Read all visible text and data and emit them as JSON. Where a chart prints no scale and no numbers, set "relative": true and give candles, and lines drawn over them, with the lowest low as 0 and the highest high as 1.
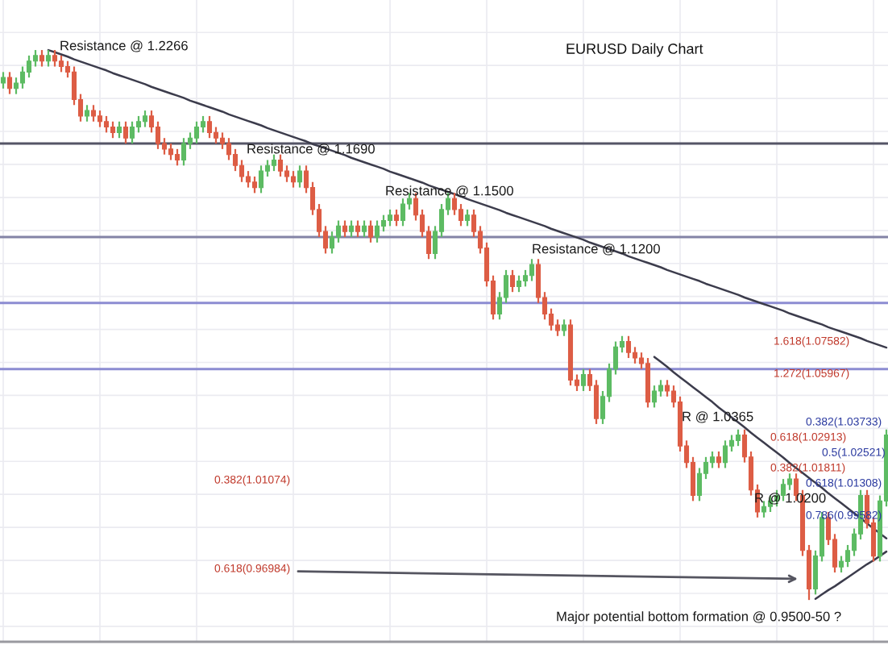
{
  "chart_data": {
    "type": "candlestick",
    "title": "EURUSD Daily Chart",
    "relative": true,
    "tick_labels": false,
    "grid": true,
    "categories": [
      null,
      null,
      null,
      null,
      null,
      null,
      null,
      null,
      null,
      null,
      null,
      null,
      null,
      null,
      null,
      null,
      null,
      null,
      null,
      null,
      null,
      null,
      null,
      null,
      null,
      null,
      null,
      null,
      null,
      null,
      null,
      null,
      null,
      null,
      null,
      null,
      null,
      null,
      null,
      null,
      null,
      null,
      null,
      null,
      null,
      null,
      null,
      null,
      null,
      null,
      null,
      null,
      null,
      null,
      null,
      null,
      null,
      null,
      null,
      null,
      null,
      null,
      null,
      null,
      null,
      null,
      null,
      null,
      null,
      null,
      null,
      null,
      null,
      null,
      null,
      null,
      null,
      null,
      null,
      null,
      null,
      null,
      null,
      null,
      null,
      null,
      null,
      null,
      null,
      null,
      null,
      null,
      null,
      null,
      null,
      null,
      null,
      null,
      null,
      null,
      null,
      null,
      null,
      null,
      null,
      null,
      null,
      null,
      null,
      null,
      null,
      null,
      null,
      null,
      null,
      null,
      null,
      null,
      null,
      null,
      null,
      null,
      null,
      null,
      null,
      null,
      null,
      null,
      null,
      null,
      null,
      null,
      null,
      null,
      null,
      null,
      null,
      null
    ],
    "ohlc": [
      [
        0.94,
        0.96,
        0.93,
        0.95
      ],
      [
        0.95,
        0.96,
        0.92,
        0.93
      ],
      [
        0.93,
        0.95,
        0.92,
        0.94
      ],
      [
        0.94,
        0.97,
        0.93,
        0.96
      ],
      [
        0.96,
        0.99,
        0.95,
        0.98
      ],
      [
        0.98,
        1.0,
        0.97,
        0.99
      ],
      [
        0.99,
        1.0,
        0.97,
        0.98
      ],
      [
        0.98,
        1.0,
        0.97,
        0.99
      ],
      [
        0.99,
        1.0,
        0.97,
        0.98
      ],
      [
        0.98,
        0.99,
        0.96,
        0.97
      ],
      [
        0.97,
        0.98,
        0.95,
        0.96
      ],
      [
        0.96,
        0.97,
        0.9,
        0.91
      ],
      [
        0.91,
        0.92,
        0.87,
        0.88
      ],
      [
        0.88,
        0.9,
        0.87,
        0.89
      ],
      [
        0.89,
        0.9,
        0.87,
        0.88
      ],
      [
        0.88,
        0.89,
        0.86,
        0.87
      ],
      [
        0.87,
        0.88,
        0.85,
        0.86
      ],
      [
        0.86,
        0.87,
        0.84,
        0.85
      ],
      [
        0.85,
        0.87,
        0.84,
        0.86
      ],
      [
        0.86,
        0.87,
        0.83,
        0.84
      ],
      [
        0.84,
        0.87,
        0.83,
        0.86
      ],
      [
        0.86,
        0.88,
        0.85,
        0.87
      ],
      [
        0.87,
        0.89,
        0.86,
        0.88
      ],
      [
        0.88,
        0.89,
        0.85,
        0.86
      ],
      [
        0.86,
        0.87,
        0.82,
        0.83
      ],
      [
        0.83,
        0.84,
        0.81,
        0.82
      ],
      [
        0.82,
        0.83,
        0.8,
        0.81
      ],
      [
        0.81,
        0.82,
        0.79,
        0.8
      ],
      [
        0.8,
        0.84,
        0.79,
        0.83
      ],
      [
        0.83,
        0.85,
        0.82,
        0.84
      ],
      [
        0.84,
        0.87,
        0.83,
        0.86
      ],
      [
        0.86,
        0.88,
        0.85,
        0.87
      ],
      [
        0.87,
        0.88,
        0.84,
        0.85
      ],
      [
        0.85,
        0.86,
        0.83,
        0.84
      ],
      [
        0.84,
        0.85,
        0.82,
        0.83
      ],
      [
        0.83,
        0.84,
        0.8,
        0.81
      ],
      [
        0.81,
        0.82,
        0.78,
        0.79
      ],
      [
        0.79,
        0.8,
        0.76,
        0.77
      ],
      [
        0.77,
        0.78,
        0.75,
        0.76
      ],
      [
        0.76,
        0.77,
        0.74,
        0.75
      ],
      [
        0.75,
        0.79,
        0.74,
        0.78
      ],
      [
        0.78,
        0.8,
        0.77,
        0.79
      ],
      [
        0.79,
        0.81,
        0.78,
        0.8
      ],
      [
        0.8,
        0.81,
        0.77,
        0.78
      ],
      [
        0.78,
        0.79,
        0.76,
        0.77
      ],
      [
        0.77,
        0.78,
        0.75,
        0.76
      ],
      [
        0.76,
        0.79,
        0.75,
        0.78
      ],
      [
        0.78,
        0.79,
        0.74,
        0.75
      ],
      [
        0.75,
        0.76,
        0.7,
        0.71
      ],
      [
        0.71,
        0.72,
        0.66,
        0.67
      ],
      [
        0.67,
        0.68,
        0.63,
        0.64
      ],
      [
        0.64,
        0.67,
        0.63,
        0.66
      ],
      [
        0.66,
        0.69,
        0.65,
        0.68
      ],
      [
        0.68,
        0.69,
        0.66,
        0.67
      ],
      [
        0.67,
        0.69,
        0.66,
        0.68
      ],
      [
        0.68,
        0.69,
        0.66,
        0.67
      ],
      [
        0.67,
        0.69,
        0.66,
        0.68
      ],
      [
        0.68,
        0.69,
        0.65,
        0.66
      ],
      [
        0.66,
        0.69,
        0.65,
        0.68
      ],
      [
        0.68,
        0.7,
        0.67,
        0.69
      ],
      [
        0.69,
        0.71,
        0.68,
        0.7
      ],
      [
        0.7,
        0.71,
        0.68,
        0.69
      ],
      [
        0.69,
        0.73,
        0.68,
        0.72
      ],
      [
        0.72,
        0.74,
        0.71,
        0.73
      ],
      [
        0.73,
        0.74,
        0.69,
        0.7
      ],
      [
        0.7,
        0.71,
        0.66,
        0.67
      ],
      [
        0.67,
        0.68,
        0.62,
        0.63
      ],
      [
        0.63,
        0.68,
        0.62,
        0.67
      ],
      [
        0.67,
        0.72,
        0.66,
        0.71
      ],
      [
        0.71,
        0.74,
        0.7,
        0.73
      ],
      [
        0.73,
        0.74,
        0.7,
        0.71
      ],
      [
        0.71,
        0.72,
        0.68,
        0.69
      ],
      [
        0.69,
        0.71,
        0.68,
        0.7
      ],
      [
        0.7,
        0.71,
        0.66,
        0.67
      ],
      [
        0.67,
        0.68,
        0.63,
        0.64
      ],
      [
        0.64,
        0.65,
        0.57,
        0.58
      ],
      [
        0.58,
        0.59,
        0.51,
        0.52
      ],
      [
        0.52,
        0.56,
        0.51,
        0.55
      ],
      [
        0.55,
        0.6,
        0.54,
        0.59
      ],
      [
        0.59,
        0.6,
        0.56,
        0.57
      ],
      [
        0.57,
        0.59,
        0.56,
        0.58
      ],
      [
        0.58,
        0.6,
        0.57,
        0.59
      ],
      [
        0.59,
        0.62,
        0.58,
        0.61
      ],
      [
        0.61,
        0.62,
        0.54,
        0.55
      ],
      [
        0.55,
        0.56,
        0.51,
        0.52
      ],
      [
        0.52,
        0.53,
        0.49,
        0.5
      ],
      [
        0.5,
        0.51,
        0.48,
        0.49
      ],
      [
        0.49,
        0.51,
        0.48,
        0.5
      ],
      [
        0.5,
        0.51,
        0.39,
        0.4
      ],
      [
        0.4,
        0.41,
        0.38,
        0.39
      ],
      [
        0.39,
        0.42,
        0.38,
        0.41
      ],
      [
        0.41,
        0.42,
        0.38,
        0.39
      ],
      [
        0.39,
        0.4,
        0.32,
        0.33
      ],
      [
        0.33,
        0.38,
        0.32,
        0.37
      ],
      [
        0.37,
        0.43,
        0.36,
        0.42
      ],
      [
        0.42,
        0.47,
        0.41,
        0.46
      ],
      [
        0.46,
        0.48,
        0.45,
        0.47
      ],
      [
        0.47,
        0.48,
        0.44,
        0.45
      ],
      [
        0.45,
        0.46,
        0.43,
        0.44
      ],
      [
        0.44,
        0.45,
        0.42,
        0.43
      ],
      [
        0.43,
        0.44,
        0.35,
        0.36
      ],
      [
        0.36,
        0.39,
        0.35,
        0.38
      ],
      [
        0.38,
        0.4,
        0.37,
        0.39
      ],
      [
        0.39,
        0.4,
        0.37,
        0.38
      ],
      [
        0.38,
        0.39,
        0.35,
        0.36
      ],
      [
        0.36,
        0.37,
        0.27,
        0.28
      ],
      [
        0.28,
        0.29,
        0.24,
        0.25
      ],
      [
        0.25,
        0.26,
        0.18,
        0.19
      ],
      [
        0.19,
        0.24,
        0.18,
        0.23
      ],
      [
        0.23,
        0.26,
        0.22,
        0.25
      ],
      [
        0.25,
        0.27,
        0.24,
        0.26
      ],
      [
        0.26,
        0.27,
        0.24,
        0.25
      ],
      [
        0.25,
        0.29,
        0.24,
        0.28
      ],
      [
        0.28,
        0.3,
        0.27,
        0.29
      ],
      [
        0.29,
        0.31,
        0.28,
        0.3
      ],
      [
        0.3,
        0.31,
        0.25,
        0.26
      ],
      [
        0.26,
        0.27,
        0.19,
        0.2
      ],
      [
        0.2,
        0.21,
        0.15,
        0.16
      ],
      [
        0.16,
        0.18,
        0.15,
        0.17
      ],
      [
        0.17,
        0.19,
        0.16,
        0.18
      ],
      [
        0.18,
        0.2,
        0.17,
        0.19
      ],
      [
        0.19,
        0.22,
        0.18,
        0.21
      ],
      [
        0.21,
        0.23,
        0.2,
        0.22
      ],
      [
        0.22,
        0.23,
        0.18,
        0.19
      ],
      [
        0.19,
        0.2,
        0.08,
        0.09
      ],
      [
        0.09,
        0.1,
        0.0,
        0.02
      ],
      [
        0.02,
        0.09,
        0.01,
        0.08
      ],
      [
        0.08,
        0.16,
        0.07,
        0.15
      ],
      [
        0.15,
        0.16,
        0.1,
        0.11
      ],
      [
        0.11,
        0.12,
        0.05,
        0.06
      ],
      [
        0.06,
        0.08,
        0.05,
        0.07
      ],
      [
        0.07,
        0.1,
        0.06,
        0.09
      ],
      [
        0.09,
        0.13,
        0.08,
        0.12
      ],
      [
        0.12,
        0.2,
        0.11,
        0.19
      ],
      [
        0.19,
        0.2,
        0.13,
        0.14
      ],
      [
        0.14,
        0.15,
        0.07,
        0.08
      ],
      [
        0.08,
        0.19,
        0.07,
        0.18
      ],
      [
        0.18,
        0.31,
        0.17,
        0.3
      ]
    ],
    "colors": [
      "#5dbb63",
      "#dd5d45",
      "#5dbb63",
      "#5dbb63",
      "#5dbb63",
      "#5dbb63",
      "#dd5d45",
      "#5dbb63",
      "#dd5d45",
      "#dd5d45",
      "#dd5d45",
      "#dd5d45",
      "#dd5d45",
      "#5dbb63",
      "#dd5d45",
      "#dd5d45",
      "#dd5d45",
      "#dd5d45",
      "#5dbb63",
      "#dd5d45",
      "#5dbb63",
      "#5dbb63",
      "#5dbb63",
      "#dd5d45",
      "#dd5d45",
      "#dd5d45",
      "#dd5d45",
      "#dd5d45",
      "#5dbb63",
      "#5dbb63",
      "#5dbb63",
      "#5dbb63",
      "#dd5d45",
      "#dd5d45",
      "#dd5d45",
      "#dd5d45",
      "#dd5d45",
      "#dd5d45",
      "#dd5d45",
      "#dd5d45",
      "#5dbb63",
      "#5dbb63",
      "#5dbb63",
      "#dd5d45",
      "#dd5d45",
      "#dd5d45",
      "#5dbb63",
      "#dd5d45",
      "#dd5d45",
      "#dd5d45",
      "#dd5d45",
      "#5dbb63",
      "#5dbb63",
      "#dd5d45",
      "#5dbb63",
      "#dd5d45",
      "#5dbb63",
      "#dd5d45",
      "#5dbb63",
      "#5dbb63",
      "#5dbb63",
      "#dd5d45",
      "#5dbb63",
      "#5dbb63",
      "#dd5d45",
      "#dd5d45",
      "#dd5d45",
      "#5dbb63",
      "#5dbb63",
      "#5dbb63",
      "#dd5d45",
      "#dd5d45",
      "#5dbb63",
      "#dd5d45",
      "#dd5d45",
      "#dd5d45",
      "#dd5d45",
      "#5dbb63",
      "#5dbb63",
      "#dd5d45",
      "#5dbb63",
      "#5dbb63",
      "#5dbb63",
      "#dd5d45",
      "#dd5d45",
      "#dd5d45",
      "#dd5d45",
      "#5dbb63",
      "#dd5d45",
      "#dd5d45",
      "#5dbb63",
      "#dd5d45",
      "#dd5d45",
      "#5dbb63",
      "#5dbb63",
      "#5dbb63",
      "#5dbb63",
      "#dd5d45",
      "#dd5d45",
      "#dd5d45",
      "#dd5d45",
      "#5dbb63",
      "#5dbb63",
      "#dd5d45",
      "#dd5d45",
      "#dd5d45",
      "#dd5d45",
      "#dd5d45",
      "#5dbb63",
      "#5dbb63",
      "#5dbb63",
      "#dd5d45",
      "#5dbb63",
      "#5dbb63",
      "#5dbb63",
      "#dd5d45",
      "#dd5d45",
      "#dd5d45",
      "#5dbb63",
      "#5dbb63",
      "#5dbb63",
      "#5dbb63",
      "#5dbb63",
      "#dd5d45",
      "#dd5d45",
      "#dd5d45",
      "#5dbb63",
      "#5dbb63",
      "#dd5d45",
      "#dd5d45",
      "#5dbb63",
      "#5dbb63",
      "#5dbb63",
      "#5dbb63",
      "#dd5d45",
      "#dd5d45",
      "#5dbb63",
      "#5dbb63"
    ],
    "series": [
      {
        "type": "line",
        "color": "#3c3c4c",
        "values": [
          null,
          null,
          null,
          null,
          null,
          null,
          null,
          1.0,
          0.996,
          0.992,
          0.988,
          0.983,
          0.979,
          0.975,
          0.971,
          0.967,
          0.963,
          0.958,
          0.954,
          0.95,
          0.946,
          0.942,
          0.938,
          0.933,
          0.929,
          0.925,
          0.921,
          0.917,
          0.913,
          0.908,
          0.904,
          0.9,
          0.896,
          0.892,
          0.888,
          0.883,
          0.879,
          0.875,
          0.871,
          0.867,
          0.863,
          0.858,
          0.854,
          0.85,
          0.846,
          0.842,
          0.838,
          0.834,
          0.829,
          0.825,
          0.821,
          0.817,
          0.813,
          0.809,
          0.804,
          0.8,
          0.796,
          0.792,
          0.788,
          0.784,
          0.779,
          0.775,
          0.771,
          0.767,
          0.763,
          0.759,
          0.754,
          0.75,
          0.746,
          0.742,
          0.738,
          0.734,
          0.729,
          0.725,
          0.721,
          0.717,
          0.713,
          0.709,
          0.704,
          0.7,
          0.696,
          0.692,
          0.688,
          0.684,
          0.68,
          0.675,
          0.671,
          0.667,
          0.663,
          0.659,
          0.655,
          0.65,
          0.646,
          0.642,
          0.638,
          0.634,
          0.63,
          0.625,
          0.621,
          0.617,
          0.613,
          0.609,
          0.605,
          0.6,
          0.596,
          0.592,
          0.588,
          0.584,
          0.58,
          0.575,
          0.571,
          0.567,
          0.563,
          0.559,
          0.555,
          0.55,
          0.546,
          0.542,
          0.538,
          0.534,
          0.53,
          0.526,
          0.521,
          0.517,
          0.513,
          0.509,
          0.505,
          0.501,
          0.496,
          0.492,
          0.488,
          0.484,
          0.48,
          0.476,
          0.471,
          0.467,
          0.463,
          0.459
        ]
      },
      {
        "type": "line",
        "color": "#3c3c4c",
        "values": [
          null,
          null,
          null,
          null,
          null,
          null,
          null,
          null,
          null,
          null,
          null,
          null,
          null,
          null,
          null,
          null,
          null,
          null,
          null,
          null,
          null,
          null,
          null,
          null,
          null,
          null,
          null,
          null,
          null,
          null,
          null,
          null,
          null,
          null,
          null,
          null,
          null,
          null,
          null,
          null,
          null,
          null,
          null,
          null,
          null,
          null,
          null,
          null,
          null,
          null,
          null,
          null,
          null,
          null,
          null,
          null,
          null,
          null,
          null,
          null,
          null,
          null,
          null,
          null,
          null,
          null,
          null,
          null,
          null,
          null,
          null,
          null,
          null,
          null,
          null,
          null,
          null,
          null,
          null,
          null,
          null,
          null,
          null,
          null,
          null,
          null,
          null,
          null,
          null,
          null,
          null,
          null,
          null,
          null,
          null,
          null,
          null,
          null,
          null,
          null,
          null,
          0.442,
          0.433,
          0.424,
          0.414,
          0.405,
          0.396,
          0.387,
          0.378,
          0.369,
          0.36,
          0.35,
          0.341,
          0.332,
          0.323,
          0.314,
          0.304,
          0.295,
          0.286,
          0.277,
          0.268,
          0.259,
          0.249,
          0.24,
          0.231,
          0.222,
          0.213,
          0.204,
          0.194,
          0.185,
          0.176,
          0.167,
          0.158,
          0.149,
          0.139,
          0.13,
          0.121,
          0.112
        ]
      },
      {
        "type": "line",
        "color": "#3c3c4c",
        "values": [
          null,
          null,
          null,
          null,
          null,
          null,
          null,
          null,
          null,
          null,
          null,
          null,
          null,
          null,
          null,
          null,
          null,
          null,
          null,
          null,
          null,
          null,
          null,
          null,
          null,
          null,
          null,
          null,
          null,
          null,
          null,
          null,
          null,
          null,
          null,
          null,
          null,
          null,
          null,
          null,
          null,
          null,
          null,
          null,
          null,
          null,
          null,
          null,
          null,
          null,
          null,
          null,
          null,
          null,
          null,
          null,
          null,
          null,
          null,
          null,
          null,
          null,
          null,
          null,
          null,
          null,
          null,
          null,
          null,
          null,
          null,
          null,
          null,
          null,
          null,
          null,
          null,
          null,
          null,
          null,
          null,
          null,
          null,
          null,
          null,
          null,
          null,
          null,
          null,
          null,
          null,
          null,
          null,
          null,
          null,
          null,
          null,
          null,
          null,
          null,
          null,
          null,
          null,
          null,
          null,
          null,
          null,
          null,
          null,
          null,
          null,
          null,
          null,
          null,
          null,
          null,
          null,
          null,
          null,
          null,
          null,
          null,
          null,
          null,
          null,
          null,
          0.002,
          0.01,
          0.018,
          0.025,
          0.033,
          0.041,
          0.049,
          0.057,
          0.065,
          0.072,
          0.08,
          0.088
        ]
      }
    ],
    "ref_lines": [
      {
        "axis": "y",
        "value": 0.83,
        "color": "#555566"
      },
      {
        "axis": "y",
        "value": 0.66,
        "color": "#8383a6"
      },
      {
        "axis": "y",
        "value": 0.54,
        "color": "#8c8cd2"
      },
      {
        "axis": "y",
        "value": 0.42,
        "color": "#8c8cd2"
      }
    ],
    "annotations": [
      "Resistance @ 1.2266",
      "Resistance @ 1.1690",
      "Resistance @ 1.1500",
      "Resistance @ 1.1200",
      "1.618(1.07582)",
      "1.272(1.05967)",
      "R @ 1.0365",
      "0.382(1.03733)",
      "0.618(1.02913)",
      "0.5(1.02521)",
      "0.382(1.01811)",
      "0.618(1.01308)",
      "R @ 1.0200",
      "0.382(1.01074)",
      "0.786(0.99582)",
      "0.618(0.96984)",
      "Major potential bottom formation @ 0.9500-50 ?"
    ]
  }
}
